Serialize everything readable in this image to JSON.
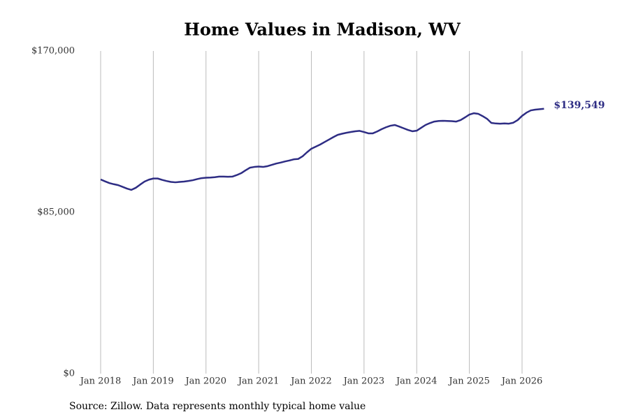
{
  "chart_data": {
    "type": "line",
    "title": "Home Values in Madison, WV",
    "source": "Source: Zillow. Data represents monthly typical home value",
    "x": [
      "2018-01",
      "2018-02",
      "2018-03",
      "2018-04",
      "2018-05",
      "2018-06",
      "2018-07",
      "2018-08",
      "2018-09",
      "2018-10",
      "2018-11",
      "2018-12",
      "2019-01",
      "2019-02",
      "2019-03",
      "2019-04",
      "2019-05",
      "2019-06",
      "2019-07",
      "2019-08",
      "2019-09",
      "2019-10",
      "2019-11",
      "2019-12",
      "2020-01",
      "2020-02",
      "2020-03",
      "2020-04",
      "2020-05",
      "2020-06",
      "2020-07",
      "2020-08",
      "2020-09",
      "2020-10",
      "2020-11",
      "2020-12",
      "2021-01",
      "2021-02",
      "2021-03",
      "2021-04",
      "2021-05",
      "2021-06",
      "2021-07",
      "2021-08",
      "2021-09",
      "2021-10",
      "2021-11",
      "2021-12",
      "2022-01",
      "2022-02",
      "2022-03",
      "2022-04",
      "2022-05",
      "2022-06",
      "2022-07",
      "2022-08",
      "2022-09",
      "2022-10",
      "2022-11",
      "2022-12",
      "2023-01",
      "2023-02",
      "2023-03",
      "2023-04",
      "2023-05",
      "2023-06",
      "2023-07",
      "2023-08",
      "2023-09",
      "2023-10",
      "2023-11",
      "2023-12",
      "2024-01",
      "2024-02",
      "2024-03",
      "2024-04",
      "2024-05",
      "2024-06",
      "2024-07",
      "2024-08",
      "2024-09",
      "2024-10",
      "2024-11",
      "2024-12",
      "2025-01",
      "2025-02",
      "2025-03",
      "2025-04",
      "2025-05",
      "2025-06",
      "2025-07",
      "2025-08",
      "2025-09",
      "2025-10",
      "2025-11",
      "2025-12",
      "2026-01",
      "2026-02",
      "2026-03",
      "2026-04",
      "2026-05",
      "2026-06"
    ],
    "series": [
      {
        "name": "Home value",
        "color": "#2e2d84",
        "values": [
          102300,
          101300,
          100400,
          99800,
          99300,
          98400,
          97500,
          96800,
          97900,
          99600,
          101200,
          102200,
          102800,
          102800,
          102100,
          101500,
          101000,
          100800,
          101000,
          101200,
          101500,
          101900,
          102500,
          103000,
          103200,
          103300,
          103500,
          103800,
          103800,
          103700,
          103800,
          104600,
          105600,
          107100,
          108500,
          108900,
          109100,
          108900,
          109300,
          110000,
          110700,
          111200,
          111800,
          112300,
          112900,
          113100,
          114500,
          116600,
          118500,
          119600,
          120700,
          122000,
          123300,
          124600,
          125800,
          126400,
          126900,
          127300,
          127700,
          127900,
          127300,
          126600,
          126600,
          127600,
          128800,
          129800,
          130600,
          131000,
          130200,
          129300,
          128400,
          127700,
          128000,
          129500,
          131000,
          132000,
          132800,
          133100,
          133200,
          133100,
          133000,
          132800,
          133600,
          135000,
          136500,
          137200,
          136900,
          135700,
          134300,
          132100,
          131800,
          131700,
          131800,
          131700,
          132200,
          133600,
          135800,
          137500,
          138700,
          139100,
          139300,
          139549
        ],
        "value_labels": [
          null,
          null,
          null,
          null,
          null,
          null,
          null,
          null,
          null,
          null,
          null,
          null,
          null,
          null,
          null,
          null,
          null,
          null,
          null,
          null,
          null,
          null,
          null,
          null,
          null,
          null,
          null,
          null,
          null,
          null,
          null,
          null,
          null,
          null,
          null,
          null,
          null,
          null,
          null,
          null,
          null,
          null,
          null,
          null,
          null,
          null,
          null,
          null,
          null,
          null,
          null,
          null,
          null,
          null,
          null,
          null,
          null,
          null,
          null,
          null,
          null,
          null,
          null,
          null,
          null,
          null,
          null,
          null,
          null,
          null,
          null,
          null,
          null,
          null,
          null,
          null,
          null,
          null,
          null,
          null,
          null,
          null,
          null,
          null,
          null,
          null,
          null,
          null,
          null,
          null,
          null,
          null,
          null,
          null,
          null,
          null,
          null,
          null,
          null,
          null,
          null,
          "$139,549"
        ]
      }
    ],
    "xlim": [
      "2017-08",
      "2026-11"
    ],
    "xticks": [
      {
        "value": "2018-01",
        "label": "Jan 2018"
      },
      {
        "value": "2019-01",
        "label": "Jan 2019"
      },
      {
        "value": "2020-01",
        "label": "Jan 2020"
      },
      {
        "value": "2021-01",
        "label": "Jan 2021"
      },
      {
        "value": "2022-01",
        "label": "Jan 2022"
      },
      {
        "value": "2023-01",
        "label": "Jan 2023"
      },
      {
        "value": "2024-01",
        "label": "Jan 2024"
      },
      {
        "value": "2025-01",
        "label": "Jan 2025"
      },
      {
        "value": "2026-01",
        "label": "Jan 2026"
      }
    ],
    "ylim": [
      0,
      170000
    ],
    "yticks": [
      {
        "value": 0,
        "label": "$0"
      },
      {
        "value": 85000,
        "label": "$85,000"
      },
      {
        "value": 170000,
        "label": "$170,000"
      }
    ],
    "grid": "x"
  }
}
